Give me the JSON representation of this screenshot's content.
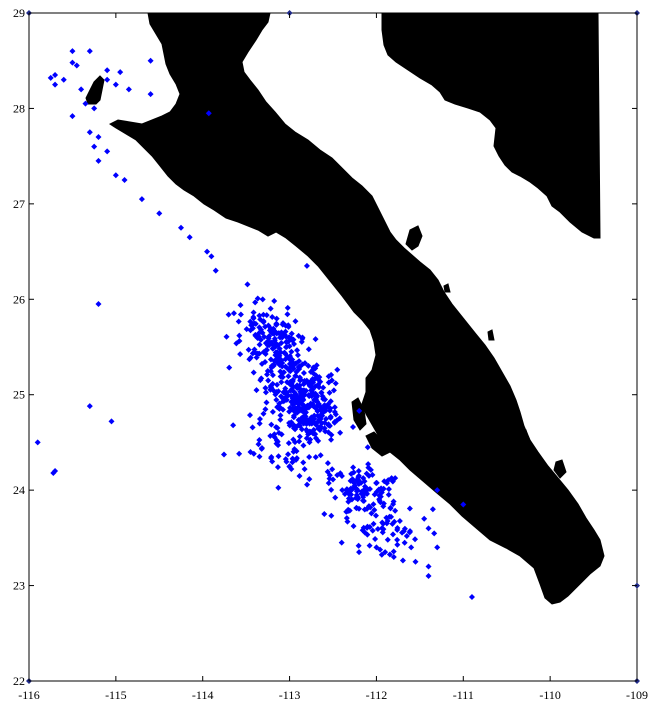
{
  "map": {
    "x_range": [
      -116,
      -109
    ],
    "y_range": [
      22,
      29
    ],
    "x_ticks": [
      -116,
      -115,
      -114,
      -113,
      -112,
      -111,
      -110,
      -109
    ],
    "y_ticks": [
      22,
      23,
      24,
      25,
      26,
      27,
      28,
      29
    ],
    "x_tick_labels": [
      "-116",
      "-115",
      "-114",
      "-113",
      "-112",
      "-111",
      "-110",
      "-109"
    ],
    "y_tick_labels": [
      "22",
      "23",
      "24",
      "25",
      "26",
      "27",
      "28",
      "29"
    ],
    "land_color": "#000000",
    "water_color": "#ffffff",
    "marker_color": "#0000ff",
    "marker_shape": "diamond",
    "corner_marker_positions": [
      [
        -116,
        29
      ],
      [
        -113,
        29
      ],
      [
        -109,
        29
      ],
      [
        -109,
        23
      ],
      [
        -116,
        22
      ],
      [
        -109,
        22
      ]
    ]
  },
  "chart_data": {
    "type": "scatter",
    "title": "",
    "xlabel": "",
    "ylabel": "",
    "xlim": [
      -116,
      -109
    ],
    "ylim": [
      22,
      29
    ],
    "grid": false,
    "series": [
      {
        "points": [
          [
            -115.5,
            28.6
          ],
          [
            -115.3,
            28.6
          ],
          [
            -114.6,
            28.5
          ],
          [
            -115.5,
            28.48
          ],
          [
            -115.45,
            28.45
          ],
          [
            -115.1,
            28.4
          ],
          [
            -114.95,
            28.38
          ],
          [
            -115.7,
            28.35
          ],
          [
            -115.75,
            28.32
          ],
          [
            -115.6,
            28.3
          ],
          [
            -115.1,
            28.3
          ],
          [
            -115.0,
            28.25
          ],
          [
            -115.7,
            28.25
          ],
          [
            -115.4,
            28.2
          ],
          [
            -114.85,
            28.2
          ],
          [
            -114.6,
            28.15
          ],
          [
            -115.35,
            28.05
          ],
          [
            -115.25,
            28.0
          ],
          [
            -115.5,
            27.92
          ],
          [
            -113.93,
            27.95
          ],
          [
            -115.3,
            27.75
          ],
          [
            -115.2,
            27.7
          ],
          [
            -115.25,
            27.6
          ],
          [
            -115.1,
            27.55
          ],
          [
            -115.2,
            27.45
          ],
          [
            -115.0,
            27.3
          ],
          [
            -114.9,
            27.25
          ],
          [
            -114.7,
            27.05
          ],
          [
            -114.5,
            26.9
          ],
          [
            -114.25,
            26.75
          ],
          [
            -114.15,
            26.65
          ],
          [
            -113.95,
            26.5
          ],
          [
            -113.9,
            26.45
          ],
          [
            -113.85,
            26.3
          ],
          [
            -112.8,
            26.35
          ],
          [
            -115.2,
            25.95
          ],
          [
            -115.3,
            24.88
          ],
          [
            -115.05,
            24.72
          ],
          [
            -115.9,
            24.5
          ],
          [
            -115.7,
            24.2
          ],
          [
            -115.72,
            24.18
          ],
          [
            -110.9,
            22.88
          ],
          [
            -111.4,
            23.1
          ],
          [
            -111.4,
            23.2
          ],
          [
            -111.3,
            23.4
          ],
          [
            -111.4,
            23.6
          ],
          [
            -111.35,
            23.8
          ],
          [
            -111.45,
            23.7
          ],
          [
            -111.3,
            24.0
          ],
          [
            -112.1,
            24.45
          ],
          [
            -111.0,
            23.85
          ],
          [
            -111.6,
            23.4
          ],
          [
            -111.8,
            23.3
          ],
          [
            -111.65,
            23.52
          ],
          [
            -111.55,
            23.25
          ],
          [
            -113.3,
            24.8
          ],
          [
            -113.65,
            24.68
          ],
          [
            -113.45,
            24.4
          ],
          [
            -113.2,
            24.3
          ],
          [
            -113.0,
            24.25
          ],
          [
            -112.6,
            23.75
          ],
          [
            -112.4,
            23.45
          ],
          [
            -112.2,
            23.35
          ],
          [
            -112.0,
            23.4
          ],
          [
            -111.9,
            23.35
          ]
        ],
        "clusters": [
          {
            "center": [
              -112.85,
              24.95
            ],
            "spread": [
              0.32,
              0.38
            ],
            "count": 330
          },
          {
            "center": [
              -113.2,
              25.55
            ],
            "spread": [
              0.3,
              0.32
            ],
            "count": 170
          },
          {
            "center": [
              -112.15,
              23.95
            ],
            "spread": [
              0.3,
              0.25
            ],
            "count": 120
          },
          {
            "center": [
              -111.9,
              23.55
            ],
            "spread": [
              0.32,
              0.2
            ],
            "count": 45
          },
          {
            "center": [
              -113.0,
              24.45
            ],
            "spread": [
              0.35,
              0.25
            ],
            "count": 60
          }
        ]
      }
    ]
  }
}
